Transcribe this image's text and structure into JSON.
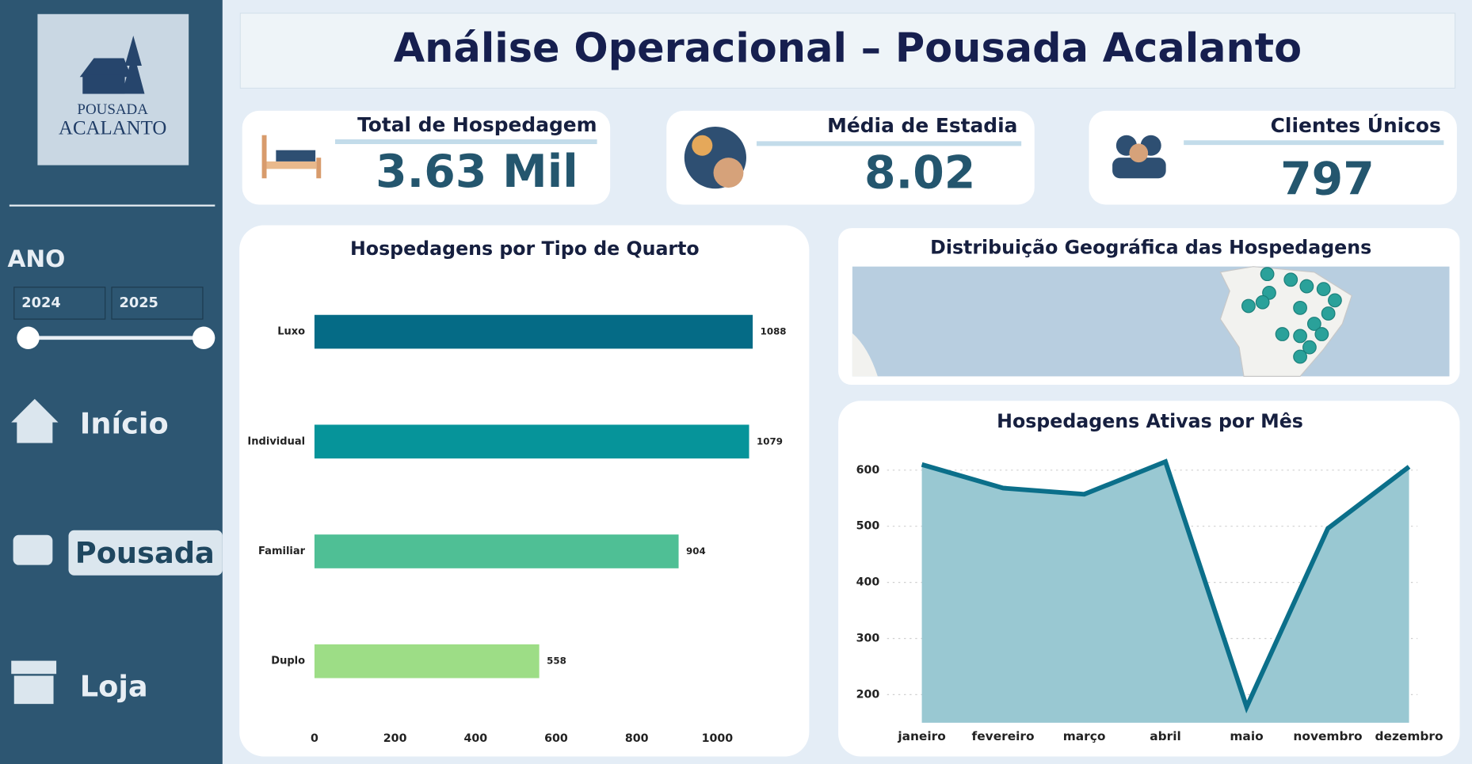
{
  "header": {
    "title": "Análise Operacional – Pousada Acalanto"
  },
  "sidebar": {
    "logo": [
      "POUSADA",
      "ACALANTO"
    ],
    "year_label": "ANO",
    "years": [
      "2024",
      "2025"
    ],
    "nav": [
      "Início",
      "Pousada",
      "Loja"
    ]
  },
  "kpis": [
    {
      "label": "Total de Hospedagem",
      "value": "3.63 Mil"
    },
    {
      "label": "Média de Estadia",
      "value": "8.02"
    },
    {
      "label": "Clientes Únicos",
      "value": "797"
    }
  ],
  "map": {
    "title": "Distribuição Geográfica das Hospedagens"
  },
  "chart_data": [
    {
      "type": "hbar",
      "title": "Hospedagens por Tipo de Quarto",
      "categories": [
        "Luxo",
        "Individual",
        "Familiar",
        "Duplo"
      ],
      "values": [
        1088,
        1079,
        904,
        558
      ],
      "colors": [
        "#056b86",
        "#06949a",
        "#4fbf95",
        "#9ddd86"
      ],
      "xlim": [
        0,
        1100
      ],
      "xticks": [
        0,
        200,
        400,
        600,
        800,
        1000
      ],
      "grid": false
    },
    {
      "type": "area",
      "title": "Hospedagens Ativas por Mês",
      "categories": [
        "janeiro",
        "fevereiro",
        "março",
        "abril",
        "maio",
        "novembro",
        "dezembro"
      ],
      "values": [
        610,
        568,
        557,
        615,
        178,
        496,
        606
      ],
      "color": "#0b6f8a",
      "fill": "#99c8d2",
      "ylim": [
        150,
        650
      ],
      "yticks": [
        200,
        300,
        400,
        500,
        600
      ],
      "grid": true
    }
  ]
}
